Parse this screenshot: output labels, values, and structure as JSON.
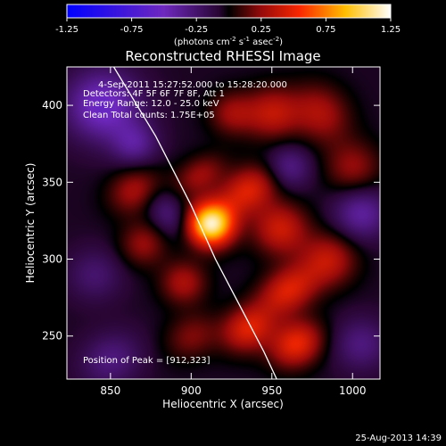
{
  "chart_data": {
    "type": "heatmap",
    "title": "Reconstructed RHESSI Image",
    "xlabel": "Heliocentric X (arcsec)",
    "ylabel": "Heliocentric Y (arcsec)",
    "xlim": [
      823,
      1017
    ],
    "ylim": [
      222,
      425
    ],
    "x_ticks": [
      850,
      900,
      950,
      1000
    ],
    "y_ticks": [
      250,
      300,
      350,
      400
    ],
    "colorbar": {
      "range": [
        -1.25,
        1.25
      ],
      "ticks": [
        "-1.25",
        "-0.75",
        "-0.25",
        "0.25",
        "0.75",
        "1.25"
      ],
      "unit_label": "(photons cm",
      "unit_sup1": "-2",
      "unit_mid": " s",
      "unit_sup2": "-1",
      "unit_mid2": " asec",
      "unit_sup3": "-2",
      "unit_end": ")"
    },
    "info_lines": [
      "4-Sep-2011 15:27:52.000 to 15:28:20.000",
      "Detectors: 4F 5F 6F 7F 8F, Att 1",
      "Energy Range: 12.0 - 25.0 keV",
      "Clean     Total counts: 1.75E+05"
    ],
    "peak_label": "Position of Peak = [912,323]",
    "peak": {
      "x": 912,
      "y": 323,
      "value": 1.25
    },
    "limb": {
      "points": [
        [
          852,
          425
        ],
        [
          878,
          380
        ],
        [
          900,
          335
        ],
        [
          915,
          300
        ],
        [
          930,
          270
        ],
        [
          945,
          240
        ],
        [
          953,
          222
        ]
      ]
    },
    "sources": [
      {
        "x": 912,
        "y": 323,
        "amp": 1.2,
        "sx": 10,
        "sy": 10
      },
      {
        "x": 935,
        "y": 345,
        "amp": 0.5,
        "sx": 14,
        "sy": 10
      },
      {
        "x": 905,
        "y": 355,
        "amp": 0.3,
        "sx": 12,
        "sy": 8
      },
      {
        "x": 955,
        "y": 320,
        "amp": 0.45,
        "sx": 12,
        "sy": 12
      },
      {
        "x": 960,
        "y": 280,
        "amp": 0.5,
        "sx": 14,
        "sy": 10
      },
      {
        "x": 935,
        "y": 255,
        "amp": 0.5,
        "sx": 12,
        "sy": 10
      },
      {
        "x": 965,
        "y": 245,
        "amp": 0.55,
        "sx": 12,
        "sy": 10
      },
      {
        "x": 985,
        "y": 300,
        "amp": 0.4,
        "sx": 12,
        "sy": 12
      },
      {
        "x": 980,
        "y": 395,
        "amp": 0.35,
        "sx": 12,
        "sy": 14
      },
      {
        "x": 950,
        "y": 395,
        "amp": 0.4,
        "sx": 12,
        "sy": 12
      },
      {
        "x": 925,
        "y": 395,
        "amp": 0.3,
        "sx": 10,
        "sy": 10
      },
      {
        "x": 865,
        "y": 345,
        "amp": 0.35,
        "sx": 12,
        "sy": 10
      },
      {
        "x": 870,
        "y": 310,
        "amp": 0.3,
        "sx": 10,
        "sy": 10
      },
      {
        "x": 895,
        "y": 285,
        "amp": 0.35,
        "sx": 10,
        "sy": 10
      },
      {
        "x": 900,
        "y": 250,
        "amp": 0.25,
        "sx": 12,
        "sy": 10
      },
      {
        "x": 1000,
        "y": 360,
        "amp": 0.3,
        "sx": 12,
        "sy": 12
      },
      {
        "x": 845,
        "y": 400,
        "amp": -0.5,
        "sx": 16,
        "sy": 16
      },
      {
        "x": 865,
        "y": 375,
        "amp": -0.3,
        "sx": 10,
        "sy": 10
      },
      {
        "x": 1005,
        "y": 330,
        "amp": -0.35,
        "sx": 12,
        "sy": 12
      },
      {
        "x": 960,
        "y": 360,
        "amp": -0.3,
        "sx": 10,
        "sy": 10
      },
      {
        "x": 885,
        "y": 330,
        "amp": -0.25,
        "sx": 8,
        "sy": 12
      },
      {
        "x": 840,
        "y": 290,
        "amp": -0.2,
        "sx": 12,
        "sy": 12
      },
      {
        "x": 850,
        "y": 235,
        "amp": -0.25,
        "sx": 14,
        "sy": 12
      },
      {
        "x": 1005,
        "y": 245,
        "amp": -0.25,
        "sx": 12,
        "sy": 12
      }
    ]
  },
  "timestamp": "25-Aug-2013 14:39"
}
